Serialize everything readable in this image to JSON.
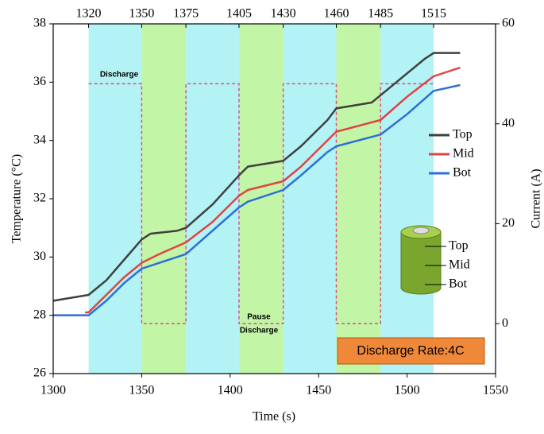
{
  "chart_data": {
    "type": "line",
    "xlabel": "Time (s)",
    "ylabel": "Temperature (°C)",
    "y2label": "Current (A)",
    "xlim": [
      1300,
      1550
    ],
    "xticks": [
      1300,
      1350,
      1400,
      1450,
      1500,
      1550
    ],
    "x2ticks": [
      1320,
      1350,
      1375,
      1405,
      1430,
      1460,
      1485,
      1515
    ],
    "band_colors": [
      "#b3f3f5",
      "#c2f5a6"
    ],
    "ylim": [
      26,
      38
    ],
    "yticks": [
      26,
      28,
      30,
      32,
      34,
      36,
      38
    ],
    "y2lim": [
      -10,
      60
    ],
    "y2ticks": [
      0,
      20,
      40,
      60
    ],
    "series": [
      {
        "name": "Top",
        "color": "#404040",
        "x": [
          1300,
          1320,
          1330,
          1340,
          1350,
          1355,
          1370,
          1375,
          1390,
          1405,
          1410,
          1430,
          1440,
          1455,
          1460,
          1480,
          1490,
          1500,
          1510,
          1515,
          1530
        ],
        "values": [
          28.5,
          28.7,
          29.2,
          29.9,
          30.6,
          30.8,
          30.9,
          31.0,
          31.8,
          32.8,
          33.1,
          33.3,
          33.8,
          34.7,
          35.1,
          35.3,
          35.8,
          36.3,
          36.8,
          37.0,
          37.0
        ]
      },
      {
        "name": "Mid",
        "color": "#e04343",
        "x": [
          1318,
          1320,
          1330,
          1340,
          1350,
          1360,
          1375,
          1390,
          1405,
          1410,
          1430,
          1440,
          1455,
          1460,
          1485,
          1500,
          1515,
          1530
        ],
        "values": [
          28.1,
          28.1,
          28.7,
          29.3,
          29.8,
          30.1,
          30.5,
          31.2,
          32.1,
          32.3,
          32.6,
          33.1,
          34.0,
          34.3,
          34.7,
          35.5,
          36.2,
          36.5
        ]
      },
      {
        "name": "Bot",
        "color": "#2e6fd6",
        "x": [
          1300,
          1320,
          1330,
          1340,
          1350,
          1360,
          1375,
          1390,
          1405,
          1410,
          1430,
          1440,
          1455,
          1460,
          1485,
          1500,
          1515,
          1530
        ],
        "values": [
          28.0,
          28.0,
          28.5,
          29.1,
          29.6,
          29.8,
          30.1,
          30.9,
          31.7,
          31.9,
          32.3,
          32.8,
          33.6,
          33.8,
          34.2,
          34.9,
          35.7,
          35.9
        ]
      }
    ],
    "current": {
      "color": "#d9508a",
      "axis": "y2",
      "x": [
        1320,
        1350,
        1350,
        1375,
        1375,
        1405,
        1405,
        1430,
        1430,
        1460,
        1460,
        1485,
        1485,
        1515
      ],
      "values": [
        48,
        48,
        0,
        0,
        48,
        48,
        0,
        0,
        48,
        48,
        0,
        0,
        48,
        48
      ]
    },
    "annotations": [
      "Discharge",
      "Pause",
      "Discharge"
    ],
    "rate_label": "Discharge Rate:4C",
    "cylinder_labels": [
      "Top",
      "Mid",
      "Bot"
    ]
  }
}
